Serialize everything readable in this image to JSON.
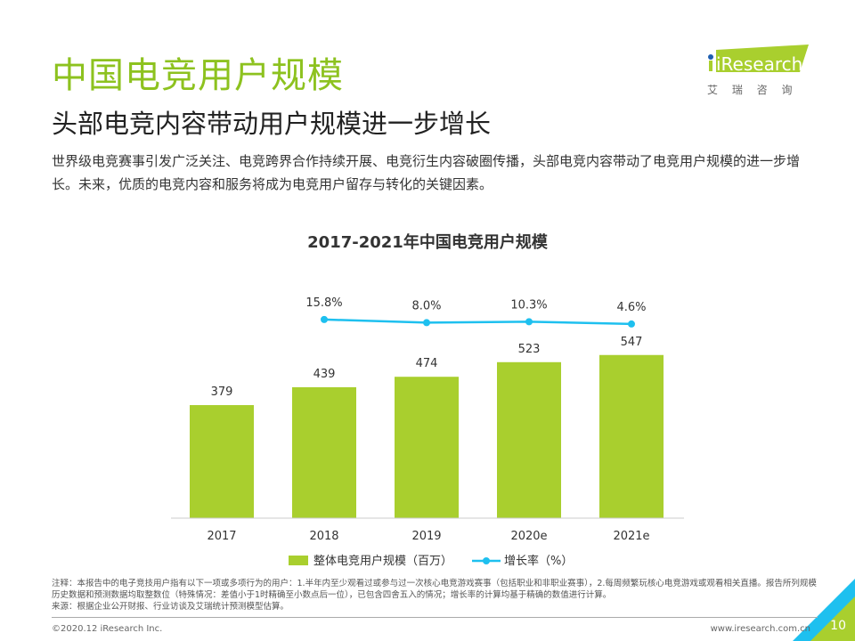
{
  "header": {
    "title": "中国电竞用户规模",
    "subtitle": "头部电竞内容带动用户规模进一步增长",
    "description": "世界级电竞赛事引发广泛关注、电竞跨界合作持续开展、电竞衍生内容破圈传播，头部电竞内容带动了电竞用户规模的进一步增长。未来，优质的电竞内容和服务将成为电竞用户留存与转化的关键因素。"
  },
  "logo": {
    "brand": "iResearch",
    "chinese": "艾 瑞 咨 询"
  },
  "colors": {
    "accent": "#8dc21f",
    "bar": "#a9cf2e",
    "line": "#1ec0ef"
  },
  "chart_data": {
    "type": "bar",
    "title": "2017-2021年中国电竞用户规模",
    "categories": [
      "2017",
      "2018",
      "2019",
      "2020e",
      "2021e"
    ],
    "series": [
      {
        "name": "整体电竞用户规模（百万）",
        "type": "bar",
        "values": [
          379,
          439,
          474,
          523,
          547
        ],
        "labels": [
          "379",
          "439",
          "474",
          "523",
          "547"
        ]
      },
      {
        "name": "增长率（%）",
        "type": "line",
        "values": [
          null,
          15.8,
          8.0,
          10.3,
          4.6
        ],
        "labels": [
          "",
          "15.8%",
          "8.0%",
          "10.3%",
          "4.6%"
        ]
      }
    ],
    "ylim": [
      0,
      1000
    ],
    "grid": false,
    "legend": "bottom"
  },
  "footer": {
    "notes": [
      "注释：本报告中的电子竞技用户指有以下一项或多项行为的用户：1.半年内至少观看过或参与过一次核心电竞游戏赛事（包括职业和非职业赛事），2.每周频繁玩核心电竞游戏或观看相关直播。报告所列规模历史数据和预测数据均取整数位（特殊情况：差值小于1时精确至小数点后一位），已包含四舍五入的情况；增长率的计算均基于精确的数值进行计算。",
      "来源：根据企业公开财报、行业访谈及艾瑞统计预测模型估算。"
    ],
    "copyright": "©2020.12 iResearch Inc.",
    "website": "www.iresearch.com.cn",
    "page": "10"
  }
}
